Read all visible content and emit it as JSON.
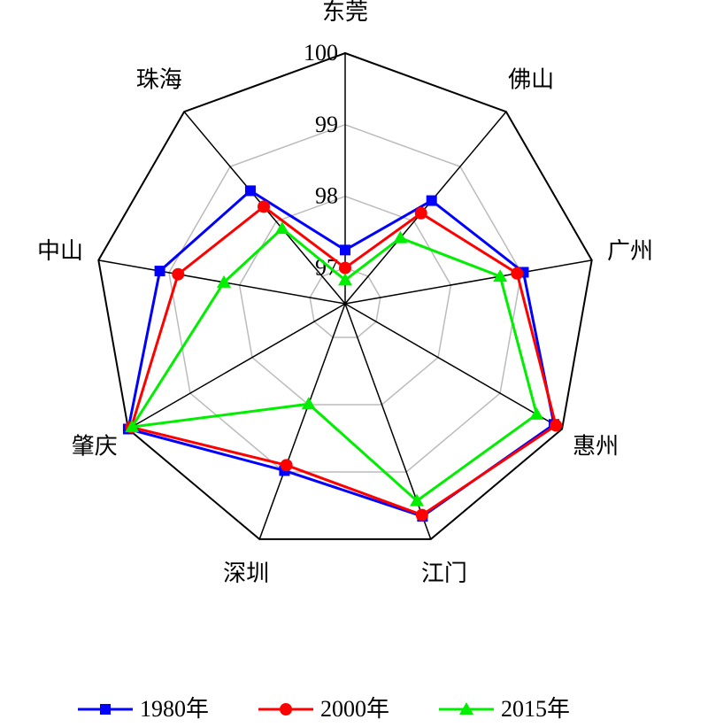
{
  "chart_data": {
    "type": "radar",
    "categories": [
      "东莞",
      "佛山",
      "广州",
      "惠州",
      "江门",
      "深圳",
      "肇庆",
      "中山",
      "珠海"
    ],
    "series": [
      {
        "name": "1980年",
        "color": "#0000ff",
        "marker": "square",
        "values": [
          97.25,
          98.38,
          99.03,
          99.87,
          99.66,
          98.98,
          100,
          99.13,
          98.56
        ]
      },
      {
        "name": "2000年",
        "color": "#ff0000",
        "marker": "circle",
        "values": [
          97.0,
          98.15,
          98.94,
          99.9,
          99.64,
          98.9,
          99.95,
          98.87,
          98.27
        ]
      },
      {
        "name": "2015年",
        "color": "#00ee00",
        "marker": "triangle",
        "values": [
          96.83,
          97.7,
          98.7,
          99.59,
          99.43,
          97.99,
          99.94,
          98.22,
          97.87
        ]
      }
    ],
    "ylim": [
      96.5,
      100
    ],
    "yticks": [
      97,
      98,
      99,
      100
    ],
    "grid": true
  }
}
